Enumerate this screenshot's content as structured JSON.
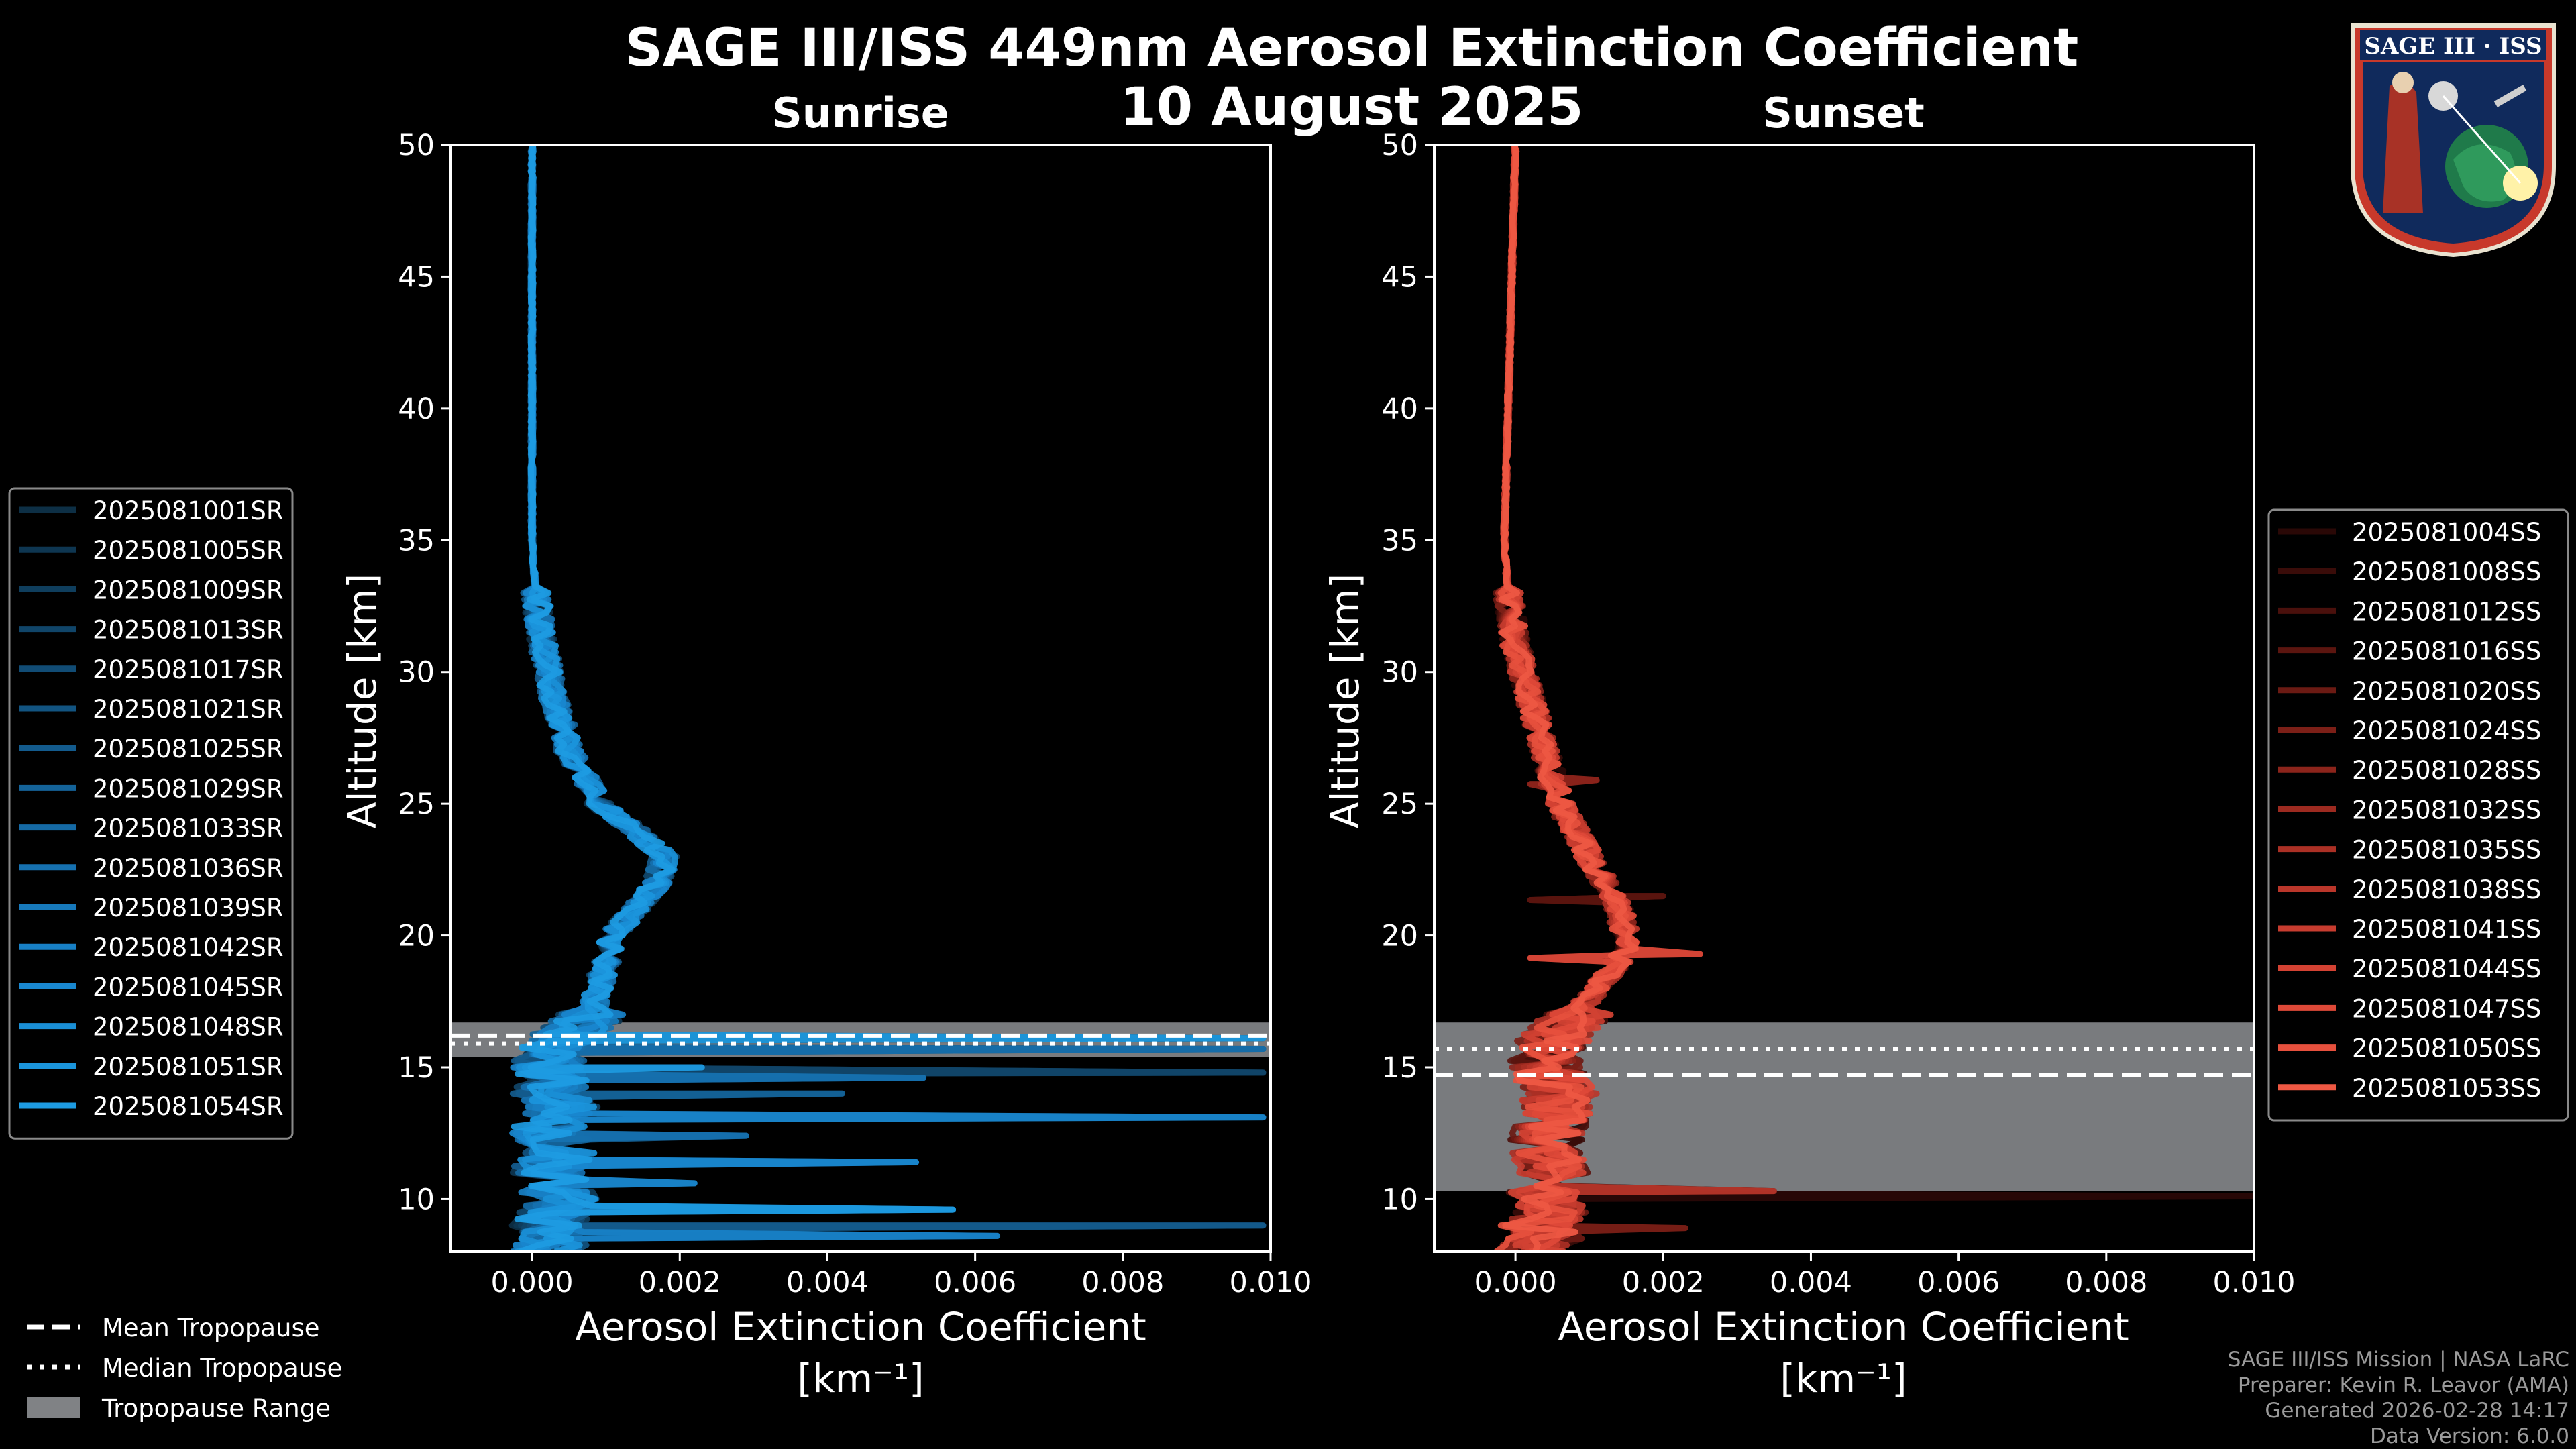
{
  "figure": {
    "title": "SAGE III/ISS 449nm Aerosol Extinction Coefficient",
    "date": "10 August 2025"
  },
  "logo": {
    "text": "SAGE III · ISS"
  },
  "panels": [
    {
      "id": "sunrise",
      "title": "Sunrise",
      "ylabel": "Altitude [km]",
      "xlabel_line1": "Aerosol Extinction Coefficient",
      "xlabel_line2": "[km⁻¹]"
    },
    {
      "id": "sunset",
      "title": "Sunset",
      "ylabel": "Altitude [km]",
      "xlabel_line1": "Aerosol Extinction Coefficient",
      "xlabel_line2": "[km⁻¹]"
    }
  ],
  "colors": {
    "background": "#000000",
    "sunrise_accent": "#1a8fd6",
    "sunset_accent": "#e8503c",
    "tropopause_range": "#808285"
  },
  "tropopause_legend": {
    "mean": "Mean Tropopause",
    "median": "Median Tropopause",
    "range": "Tropopause Range"
  },
  "footer": {
    "line1": "SAGE III/ISS Mission | NASA LaRC",
    "line2": "Preparer: Kevin R. Leavor (AMA)",
    "line3": "Generated 2026-02-28 14:17",
    "line4": "Data Version: 6.0.0"
  },
  "chart_data": [
    {
      "type": "line",
      "panel": "sunrise",
      "title": "Sunrise",
      "xlabel": "Aerosol Extinction Coefficient [km⁻¹]",
      "ylabel": "Altitude [km]",
      "xlim": [
        -0.0011,
        0.01
      ],
      "ylim": [
        8,
        50
      ],
      "xticks": [
        0.0,
        0.002,
        0.004,
        0.006,
        0.008,
        0.01
      ],
      "xtick_labels": [
        "0.000",
        "0.002",
        "0.004",
        "0.006",
        "0.008",
        "0.010"
      ],
      "yticks": [
        10,
        15,
        20,
        25,
        30,
        35,
        40,
        45,
        50
      ],
      "tropopause": {
        "mean": 16.2,
        "median": 15.9,
        "range": [
          15.4,
          16.7
        ]
      },
      "base_profile": {
        "altitude": [
          50,
          40,
          35,
          33,
          31,
          29,
          27,
          25,
          24,
          23,
          22,
          21,
          20,
          19,
          18,
          17,
          16.5,
          16,
          15.5,
          15,
          14.5,
          14,
          13.5,
          13,
          12.5,
          12,
          11.5,
          11,
          10.5,
          10,
          9.5,
          9,
          8.5,
          8
        ],
        "values": [
          0.0,
          0.0,
          0.0,
          5e-05,
          0.00015,
          0.0003,
          0.0005,
          0.0009,
          0.0014,
          0.0018,
          0.0017,
          0.0014,
          0.0011,
          0.001,
          0.0009,
          0.0008,
          0.0006,
          0.0004,
          0.0003,
          0.0002,
          0.0003,
          0.0002,
          0.0004,
          0.0003,
          0.0002,
          0.0004,
          0.0003,
          0.0002,
          0.0003,
          0.0004,
          0.0003,
          0.0002,
          0.0003,
          0.0002
        ]
      },
      "spikes": [
        {
          "altitude": 16.1,
          "value": 0.0099
        },
        {
          "altitude": 15.7,
          "value": 0.0099
        },
        {
          "altitude": 14.8,
          "value": 0.0099
        },
        {
          "altitude": 13.1,
          "value": 0.0099
        },
        {
          "altitude": 9.0,
          "value": 0.0099
        },
        {
          "altitude": 15.0,
          "value": 0.0023
        },
        {
          "altitude": 14.6,
          "value": 0.0053
        },
        {
          "altitude": 14.0,
          "value": 0.0042
        },
        {
          "altitude": 11.4,
          "value": 0.0052
        },
        {
          "altitude": 12.4,
          "value": 0.0029
        },
        {
          "altitude": 9.6,
          "value": 0.0057
        },
        {
          "altitude": 8.6,
          "value": 0.0063
        },
        {
          "altitude": 10.6,
          "value": 0.0022
        }
      ],
      "series": [
        {
          "name": "2025081001SR",
          "color": "#0d2f45"
        },
        {
          "name": "2025081005SR",
          "color": "#0e3651"
        },
        {
          "name": "2025081009SR",
          "color": "#0f3e5d"
        },
        {
          "name": "2025081013SR",
          "color": "#104569"
        },
        {
          "name": "2025081017SR",
          "color": "#114c75"
        },
        {
          "name": "2025081021SR",
          "color": "#125481"
        },
        {
          "name": "2025081025SR",
          "color": "#135b8d"
        },
        {
          "name": "2025081029SR",
          "color": "#146399"
        },
        {
          "name": "2025081033SR",
          "color": "#156aa5"
        },
        {
          "name": "2025081036SR",
          "color": "#1671b0"
        },
        {
          "name": "2025081039SR",
          "color": "#1779bb"
        },
        {
          "name": "2025081042SR",
          "color": "#1880c5"
        },
        {
          "name": "2025081045SR",
          "color": "#1987cf"
        },
        {
          "name": "2025081048SR",
          "color": "#1a8fd6"
        },
        {
          "name": "2025081051SR",
          "color": "#1b95dc"
        },
        {
          "name": "2025081054SR",
          "color": "#1d9be2"
        }
      ]
    },
    {
      "type": "line",
      "panel": "sunset",
      "title": "Sunset",
      "xlabel": "Aerosol Extinction Coefficient [km⁻¹]",
      "ylabel": "Altitude [km]",
      "xlim": [
        -0.0011,
        0.01
      ],
      "ylim": [
        8,
        50
      ],
      "xticks": [
        0.0,
        0.002,
        0.004,
        0.006,
        0.008,
        0.01
      ],
      "xtick_labels": [
        "0.000",
        "0.002",
        "0.004",
        "0.006",
        "0.008",
        "0.010"
      ],
      "yticks": [
        10,
        15,
        20,
        25,
        30,
        35,
        40,
        45,
        50
      ],
      "tropopause": {
        "mean": 14.7,
        "median": 15.7,
        "range": [
          10.3,
          16.7
        ]
      },
      "base_profile": {
        "altitude": [
          50,
          45,
          40,
          35,
          33,
          31,
          30,
          29,
          28,
          27,
          26,
          25,
          24,
          23,
          22,
          21,
          20,
          19,
          18,
          17,
          16,
          15,
          14,
          13,
          12,
          11,
          10.5,
          10,
          9.5,
          9,
          8.5,
          8
        ],
        "values": [
          0.0,
          -5e-05,
          -0.0001,
          -0.00015,
          -0.0001,
          0.0,
          0.0001,
          0.0002,
          0.0003,
          0.0004,
          0.0005,
          0.0006,
          0.0008,
          0.001,
          0.0012,
          0.0014,
          0.0015,
          0.0014,
          0.0011,
          0.0008,
          0.0005,
          0.0004,
          0.0006,
          0.0005,
          0.0004,
          0.0005,
          0.0003,
          0.0004,
          0.0005,
          0.0003,
          0.0004,
          0.0002
        ]
      },
      "spikes": [
        {
          "altitude": 10.1,
          "value": 0.01
        },
        {
          "altitude": 10.3,
          "value": 0.0035
        },
        {
          "altitude": 21.5,
          "value": 0.002
        },
        {
          "altitude": 19.3,
          "value": 0.0025
        },
        {
          "altitude": 25.9,
          "value": 0.0011
        },
        {
          "altitude": 8.9,
          "value": 0.0023
        }
      ],
      "series": [
        {
          "name": "2025081004SS",
          "color": "#2a0806"
        },
        {
          "name": "2025081008SS",
          "color": "#3a0c09"
        },
        {
          "name": "2025081012SS",
          "color": "#4a100c"
        },
        {
          "name": "2025081016SS",
          "color": "#5b150f"
        },
        {
          "name": "2025081020SS",
          "color": "#6b1a13"
        },
        {
          "name": "2025081024SS",
          "color": "#7c1f17"
        },
        {
          "name": "2025081028SS",
          "color": "#8c241b"
        },
        {
          "name": "2025081032SS",
          "color": "#9c2a20"
        },
        {
          "name": "2025081035SS",
          "color": "#ab3025"
        },
        {
          "name": "2025081038SS",
          "color": "#ba362a"
        },
        {
          "name": "2025081041SS",
          "color": "#c73c2f"
        },
        {
          "name": "2025081044SS",
          "color": "#d34233"
        },
        {
          "name": "2025081047SS",
          "color": "#de4938"
        },
        {
          "name": "2025081050SS",
          "color": "#e6503d"
        },
        {
          "name": "2025081053SS",
          "color": "#ee5843"
        }
      ]
    }
  ]
}
